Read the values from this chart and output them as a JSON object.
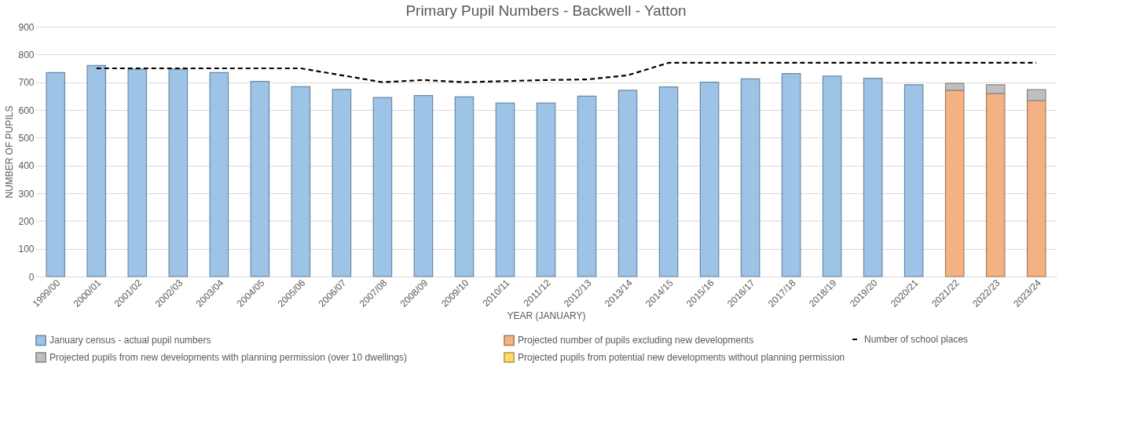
{
  "chart_data": {
    "type": "bar",
    "title": "Primary Pupil Numbers - Backwell - Yatton",
    "xlabel": "YEAR (JANUARY)",
    "ylabel": "NUMBER OF PUPILS",
    "categories": [
      "1999/00",
      "2000/01",
      "2001/02",
      "2002/03",
      "2003/04",
      "2004/05",
      "2005/06",
      "2006/07",
      "2007/08",
      "2008/09",
      "2009/10",
      "2010/11",
      "2011/12",
      "2012/13",
      "2013/14",
      "2014/15",
      "2015/16",
      "2016/17",
      "2017/18",
      "2018/19",
      "2019/20",
      "2020/21",
      "2021/22",
      "2022/23",
      "2023/24"
    ],
    "stacked": true,
    "ylim": [
      0,
      900
    ],
    "yticks": [
      0,
      100,
      200,
      300,
      400,
      500,
      600,
      700,
      800,
      900
    ],
    "grid": "y",
    "legend": "bottom",
    "series": [
      {
        "name": "January census - actual pupil numbers",
        "color": "#9dc3e6",
        "values": [
          735,
          760,
          747,
          747,
          735,
          703,
          684,
          674,
          645,
          652,
          647,
          625,
          625,
          650,
          671,
          683,
          700,
          712,
          731,
          722,
          714,
          691,
          null,
          null,
          null
        ]
      },
      {
        "name": "Projected number of pupils excluding new developments",
        "color": "#f4b183",
        "values": [
          null,
          null,
          null,
          null,
          null,
          null,
          null,
          null,
          null,
          null,
          null,
          null,
          null,
          null,
          null,
          null,
          null,
          null,
          null,
          null,
          null,
          null,
          671,
          659,
          634
        ]
      },
      {
        "name": "Projected pupils from new developments with planning permission (over 10 dwellings)",
        "color": "#bfbfbf",
        "values": [
          null,
          null,
          null,
          null,
          null,
          null,
          null,
          null,
          null,
          null,
          null,
          null,
          null,
          null,
          null,
          null,
          null,
          null,
          null,
          null,
          null,
          null,
          25,
          32,
          39
        ]
      },
      {
        "name": "Projected pupils from potential new developments without planning permission",
        "color": "#ffd966",
        "values": [
          null,
          null,
          null,
          null,
          null,
          null,
          null,
          null,
          null,
          null,
          null,
          null,
          null,
          null,
          null,
          null,
          null,
          null,
          null,
          null,
          null,
          null,
          null,
          null,
          null
        ]
      },
      {
        "name": "Number of school places",
        "type": "line",
        "color": "#000000",
        "line_style": "dashed",
        "marker": "none",
        "values": [
          null,
          750,
          750,
          750,
          750,
          750,
          750,
          725,
          700,
          708,
          700,
          704,
          708,
          710,
          725,
          770,
          770,
          770,
          770,
          770,
          770,
          770,
          770,
          770,
          770
        ]
      }
    ]
  }
}
